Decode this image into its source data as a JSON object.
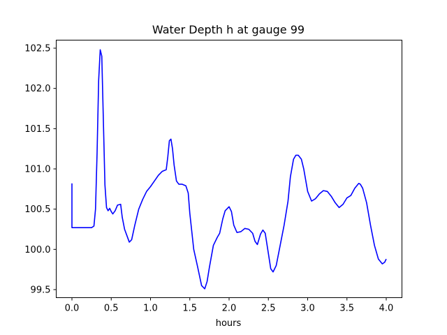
{
  "chart_data": {
    "type": "line",
    "title": "Water Depth h at gauge 99",
    "xlabel": "hours",
    "ylabel": "",
    "xlim": [
      -0.2,
      4.2
    ],
    "ylim": [
      99.4,
      102.6
    ],
    "xticks": [
      0.0,
      0.5,
      1.0,
      1.5,
      2.0,
      2.5,
      3.0,
      3.5,
      4.0
    ],
    "xtick_labels": [
      "0.0",
      "0.5",
      "1.0",
      "1.5",
      "2.0",
      "2.5",
      "3.0",
      "3.5",
      "4.0"
    ],
    "yticks": [
      99.5,
      100.0,
      100.5,
      101.0,
      101.5,
      102.0,
      102.5
    ],
    "ytick_labels": [
      "99.5",
      "100.0",
      "100.5",
      "101.0",
      "101.5",
      "102.0",
      "102.5"
    ],
    "grid": false,
    "legend": "none",
    "series": [
      {
        "color": "#0000ff",
        "x": [
          0.0,
          0.0,
          0.01,
          0.1,
          0.2,
          0.25,
          0.28,
          0.3,
          0.32,
          0.34,
          0.36,
          0.38,
          0.4,
          0.42,
          0.44,
          0.46,
          0.48,
          0.5,
          0.52,
          0.55,
          0.58,
          0.62,
          0.64,
          0.67,
          0.7,
          0.73,
          0.76,
          0.8,
          0.85,
          0.9,
          0.95,
          1.0,
          1.05,
          1.1,
          1.15,
          1.2,
          1.22,
          1.24,
          1.26,
          1.28,
          1.3,
          1.33,
          1.36,
          1.4,
          1.45,
          1.48,
          1.5,
          1.55,
          1.6,
          1.65,
          1.69,
          1.72,
          1.75,
          1.8,
          1.85,
          1.88,
          1.92,
          1.95,
          2.0,
          2.03,
          2.06,
          2.1,
          2.15,
          2.2,
          2.25,
          2.3,
          2.33,
          2.36,
          2.4,
          2.43,
          2.46,
          2.5,
          2.53,
          2.56,
          2.6,
          2.65,
          2.7,
          2.75,
          2.78,
          2.82,
          2.85,
          2.88,
          2.92,
          2.95,
          3.0,
          3.05,
          3.1,
          3.15,
          3.2,
          3.25,
          3.3,
          3.35,
          3.4,
          3.45,
          3.5,
          3.55,
          3.6,
          3.65,
          3.67,
          3.7,
          3.75,
          3.8,
          3.85,
          3.9,
          3.95,
          3.98,
          4.0
        ],
        "y": [
          100.82,
          100.27,
          100.27,
          100.27,
          100.27,
          100.27,
          100.29,
          100.5,
          101.2,
          102.1,
          102.48,
          102.4,
          101.6,
          100.8,
          100.52,
          100.48,
          100.51,
          100.47,
          100.44,
          100.48,
          100.55,
          100.56,
          100.4,
          100.25,
          100.17,
          100.09,
          100.12,
          100.3,
          100.5,
          100.62,
          100.72,
          100.78,
          100.85,
          100.92,
          100.97,
          100.99,
          101.15,
          101.35,
          101.37,
          101.25,
          101.05,
          100.85,
          100.81,
          100.81,
          100.79,
          100.7,
          100.45,
          100.0,
          99.78,
          99.55,
          99.51,
          99.6,
          99.78,
          100.05,
          100.15,
          100.2,
          100.38,
          100.48,
          100.53,
          100.47,
          100.3,
          100.21,
          100.22,
          100.26,
          100.25,
          100.2,
          100.1,
          100.06,
          100.19,
          100.24,
          100.2,
          99.95,
          99.76,
          99.72,
          99.8,
          100.05,
          100.3,
          100.6,
          100.9,
          101.12,
          101.17,
          101.17,
          101.12,
          101.0,
          100.72,
          100.6,
          100.63,
          100.69,
          100.73,
          100.72,
          100.66,
          100.58,
          100.52,
          100.56,
          100.64,
          100.67,
          100.76,
          100.82,
          100.81,
          100.76,
          100.58,
          100.3,
          100.05,
          99.88,
          99.82,
          99.84,
          99.88
        ]
      }
    ]
  }
}
